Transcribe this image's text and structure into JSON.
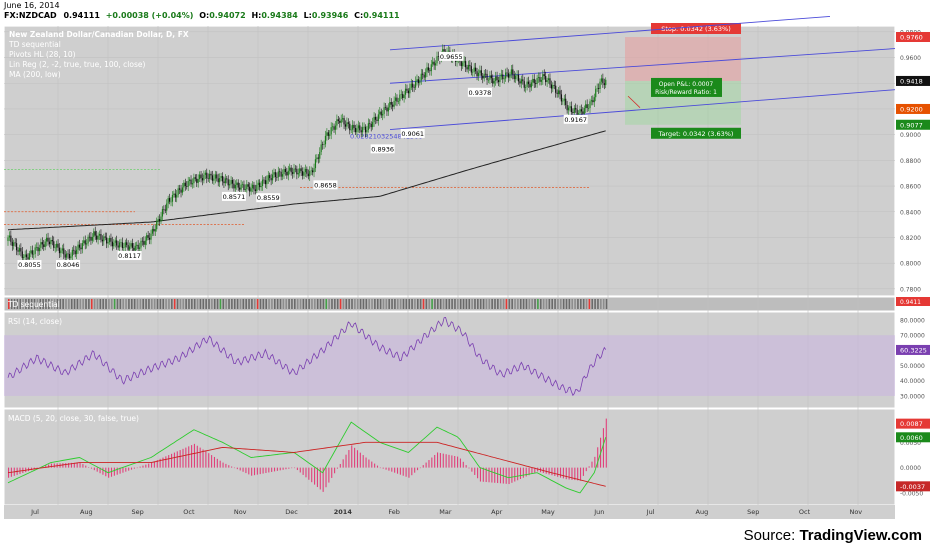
{
  "header": {
    "date": "June 16, 2014",
    "symbol": "FX:NZDCAD",
    "last": "0.94111",
    "change": "+0.00038 (+0.04%)",
    "o_label": "O:",
    "o": "0.94072",
    "h_label": "H:",
    "h": "0.94384",
    "l_label": "L:",
    "l": "0.93946",
    "c_label": "C:",
    "c": "0.94111"
  },
  "legend": {
    "title": "New Zealand Dollar/Canadian Dollar, D, FX",
    "items": [
      "TD sequential",
      "Pivots HL (28, 10)",
      "Lin Reg (2, -2, true, true, 100, close)",
      "MA (200, low)"
    ]
  },
  "source": {
    "prefix": "Source: ",
    "brand": "TradingView.com"
  },
  "colors": {
    "up": "#1a7a1a",
    "down": "#111111",
    "ma": "#222222",
    "channel": "#4b4bd9",
    "rsi": "#7a3fb0",
    "macd": "#2ecc2e",
    "signal": "#cc2222",
    "hist": "#e0407a"
  },
  "chart_data": [
    {
      "type": "line",
      "title": "New Zealand Dollar/Canadian Dollar, D, FX",
      "x_ticks": [
        "Jul",
        "Aug",
        "Sep",
        "Oct",
        "Nov",
        "Dec",
        "2014",
        "Feb",
        "Mar",
        "Apr",
        "May",
        "Jun",
        "Jul",
        "Aug",
        "Sep",
        "Oct",
        "Nov"
      ],
      "y_ticks": [
        "0.9800",
        "0.9600",
        "0.9400",
        "0.9200",
        "0.9000",
        "0.8800",
        "0.8600",
        "0.8400",
        "0.8200",
        "0.8000",
        "0.7800"
      ],
      "ylim": [
        0.776,
        0.983
      ],
      "price_keypoints": [
        [
          0,
          0.82
        ],
        [
          12,
          0.804
        ],
        [
          28,
          0.818
        ],
        [
          42,
          0.805
        ],
        [
          60,
          0.822
        ],
        [
          75,
          0.815
        ],
        [
          90,
          0.812
        ],
        [
          100,
          0.822
        ],
        [
          112,
          0.848
        ],
        [
          125,
          0.862
        ],
        [
          138,
          0.868
        ],
        [
          150,
          0.865
        ],
        [
          160,
          0.86
        ],
        [
          172,
          0.858
        ],
        [
          185,
          0.868
        ],
        [
          198,
          0.872
        ],
        [
          212,
          0.87
        ],
        [
          222,
          0.898
        ],
        [
          232,
          0.912
        ],
        [
          240,
          0.905
        ],
        [
          250,
          0.904
        ],
        [
          262,
          0.918
        ],
        [
          275,
          0.93
        ],
        [
          285,
          0.94
        ],
        [
          295,
          0.952
        ],
        [
          305,
          0.965
        ],
        [
          312,
          0.96
        ],
        [
          325,
          0.95
        ],
        [
          340,
          0.942
        ],
        [
          352,
          0.948
        ],
        [
          362,
          0.938
        ],
        [
          375,
          0.945
        ],
        [
          385,
          0.932
        ],
        [
          392,
          0.92
        ],
        [
          400,
          0.917
        ],
        [
          408,
          0.925
        ],
        [
          414,
          0.941
        ],
        [
          418,
          0.9411
        ]
      ],
      "ma_keypoints": [
        [
          0,
          0.826
        ],
        [
          100,
          0.832
        ],
        [
          200,
          0.846
        ],
        [
          260,
          0.852
        ],
        [
          320,
          0.872
        ],
        [
          370,
          0.888
        ],
        [
          418,
          0.903
        ]
      ],
      "pivot_labels": [
        {
          "text": "0.8055",
          "i": 15,
          "v": 0.804
        },
        {
          "text": "0.8046",
          "i": 42,
          "v": 0.804
        },
        {
          "text": "0.8117",
          "i": 85,
          "v": 0.811
        },
        {
          "text": "0.8571",
          "i": 158,
          "v": 0.857
        },
        {
          "text": "0.8559",
          "i": 182,
          "v": 0.856
        },
        {
          "text": "0.8658",
          "i": 222,
          "v": 0.866
        },
        {
          "text": "0.8936",
          "i": 262,
          "v": 0.894
        },
        {
          "text": "0.9061",
          "i": 283,
          "v": 0.906
        },
        {
          "text": "0.9655",
          "i": 310,
          "v": 0.966
        },
        {
          "text": "0.9378",
          "i": 330,
          "v": 0.938
        },
        {
          "text": "0.9167",
          "i": 397,
          "v": 0.917
        }
      ],
      "lin_reg_label": "0.0282103254841366",
      "price_tags": [
        {
          "text": "0.9760",
          "v": 0.976,
          "color": "#e53935"
        },
        {
          "text": "0.9418",
          "v": 0.9418,
          "color": "#111111"
        },
        {
          "text": "0.9200",
          "v": 0.92,
          "color": "#e65100"
        },
        {
          "text": "0.9077",
          "v": 0.9077,
          "color": "#1b8a1b"
        }
      ],
      "trade_box": {
        "stop": "Stop: 0.0342 (3.63%)",
        "target": "Target: 0.0342 (3.63%)",
        "open_pl": "Open P&L: 0.0007",
        "rr": "Risk/Reward Ratio: 1",
        "entry": 0.9418,
        "stop_v": 0.976,
        "target_v": 0.9077
      }
    },
    {
      "type": "line",
      "title": "RSI (14, close)",
      "y_ticks": [
        "80.0000",
        "70.0000",
        "60.0000",
        "50.0000",
        "40.0000",
        "30.0000"
      ],
      "ylim": [
        24,
        84
      ],
      "band": [
        30,
        70
      ],
      "last_value": "60.3225",
      "keypoints": [
        [
          0,
          42
        ],
        [
          20,
          55
        ],
        [
          40,
          45
        ],
        [
          60,
          58
        ],
        [
          80,
          40
        ],
        [
          100,
          48
        ],
        [
          120,
          55
        ],
        [
          140,
          68
        ],
        [
          160,
          52
        ],
        [
          180,
          58
        ],
        [
          200,
          45
        ],
        [
          220,
          60
        ],
        [
          240,
          78
        ],
        [
          260,
          62
        ],
        [
          275,
          55
        ],
        [
          290,
          68
        ],
        [
          305,
          80
        ],
        [
          318,
          72
        ],
        [
          330,
          55
        ],
        [
          345,
          44
        ],
        [
          360,
          50
        ],
        [
          375,
          42
        ],
        [
          388,
          35
        ],
        [
          398,
          32
        ],
        [
          405,
          45
        ],
        [
          412,
          55
        ],
        [
          418,
          60.3
        ]
      ]
    },
    {
      "type": "bar",
      "title": "MACD (5, 20, close, 30, false, true)",
      "y_ticks": [
        "0.0050",
        "0.0000",
        "-0.0050"
      ],
      "ylim": [
        -0.0068,
        0.0112
      ],
      "tags": [
        {
          "text": "0.0087",
          "v": 0.0087,
          "color": "#e53935"
        },
        {
          "text": "0.0060",
          "v": 0.006,
          "color": "#1b8a1b"
        },
        {
          "text": "-0.0037",
          "v": -0.0037,
          "color": "#c62828"
        }
      ],
      "macd_keypoints": [
        [
          0,
          -0.003
        ],
        [
          30,
          0.001
        ],
        [
          50,
          0.002
        ],
        [
          70,
          -0.001
        ],
        [
          100,
          0.002
        ],
        [
          130,
          0.0075
        ],
        [
          150,
          0.005
        ],
        [
          170,
          0.002
        ],
        [
          200,
          0.003
        ],
        [
          220,
          -0.001
        ],
        [
          240,
          0.009
        ],
        [
          260,
          0.005
        ],
        [
          280,
          0.003
        ],
        [
          300,
          0.008
        ],
        [
          315,
          0.006
        ],
        [
          330,
          0.0
        ],
        [
          350,
          -0.002
        ],
        [
          370,
          -0.001
        ],
        [
          390,
          -0.004
        ],
        [
          400,
          -0.005
        ],
        [
          410,
          -0.001
        ],
        [
          418,
          0.006
        ]
      ],
      "signal_keypoints": [
        [
          0,
          -0.001
        ],
        [
          50,
          0.001
        ],
        [
          100,
          0.001
        ],
        [
          150,
          0.004
        ],
        [
          200,
          0.003
        ],
        [
          250,
          0.005
        ],
        [
          300,
          0.005
        ],
        [
          340,
          0.002
        ],
        [
          380,
          -0.001
        ],
        [
          418,
          -0.0037
        ]
      ]
    }
  ]
}
